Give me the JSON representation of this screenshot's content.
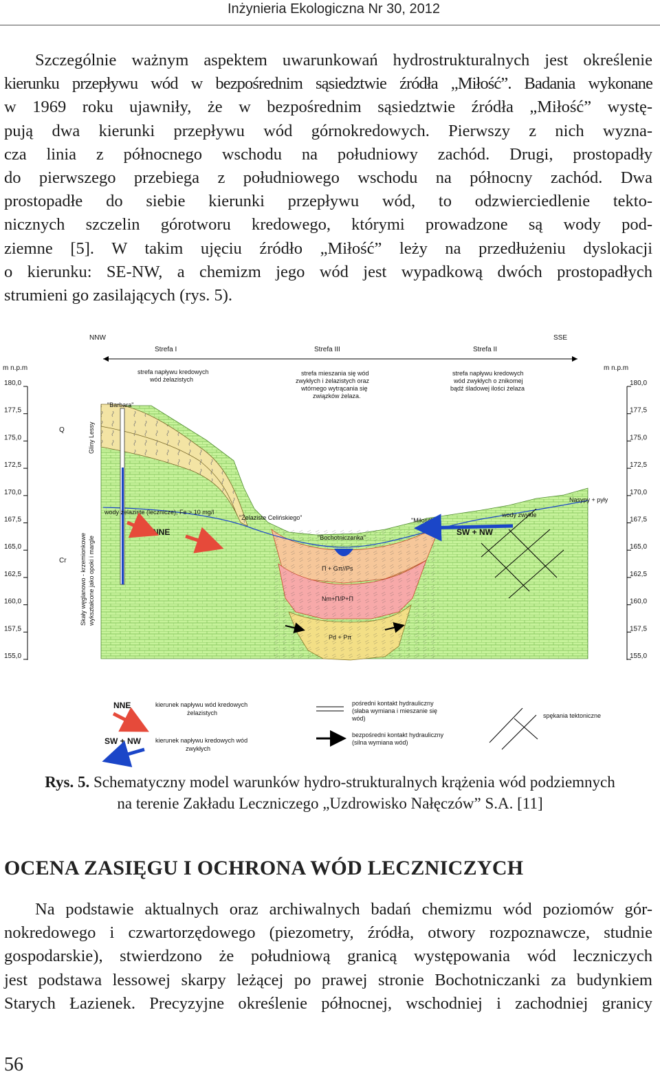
{
  "header": {
    "journal": "Inżynieria Ekologiczna Nr 30, 2012"
  },
  "para1": {
    "lines": [
      "Szczególnie ważnym aspektem uwarunkowań hydrostrukturalnych jest określenie",
      "kierunku przepływu wód w bezpośrednim sąsiedztwie źródła „Miłość”. Badania wykonane",
      "w 1969 roku ujawniły, że w bezpośrednim sąsiedztwie źródła „Miłość” wystę-",
      "pują dwa kierunki przepływu wód górnokredowych. Pierwszy z nich wyzna-",
      "cza linia z północnego wschodu na południowy zachód. Drugi, prostopadły",
      "do pierwszego przebiega z południowego wschodu na północny zachód. Dwa",
      "prostopadłe do siebie kierunki przepływu wód, to odzwierciedlenie tekto-",
      "nicznych szczelin górotworu kredowego, którymi prowadzone są wody pod-",
      "ziemne [5]. W takim ujęciu źródło „Miłość” leży na przedłużeniu dyslokacji",
      "o kierunku: SE-NW, a chemizm jego wód jest wypadkową dwóch prostopadłych",
      "strumieni go zasilających (rys. 5)."
    ]
  },
  "figure": {
    "dir_left": "NNW",
    "dir_right": "SSE",
    "zone_1": "Strefa I",
    "zone_3": "Strefa III",
    "zone_2": "Strefa II",
    "axis_unit_left": "m n.p.m",
    "axis_unit_right": "m n.p.m",
    "axis_ticks": [
      "180,0",
      "177,5",
      "175,0",
      "172,5",
      "170,0",
      "167,5",
      "165,0",
      "162,5",
      "160,0",
      "157,5",
      "155,0"
    ],
    "zone_1_desc": [
      "strefa napływu kredowych",
      "wód żelazistych"
    ],
    "zone_3_desc": [
      "strefa mieszania się wód",
      "zwykłych i żelazistych oraz",
      "wtórnego wytrącania się",
      "związków żelaza."
    ],
    "zone_2_desc": [
      "strefa napływu kredowych",
      "wód zwykłych o znikomej",
      "bądź śladowej ilości żelaza"
    ],
    "well_label": "\"Barbara\"",
    "strat_Q": "Q",
    "strat_Cr": "Cr",
    "loess_label": "Gliny   Lessy",
    "rock_desc": [
      "Skały węglanowo - krzemionkowe",
      "wykształcone jako opoki i margle"
    ],
    "iron_water_label": "wody żelaziste (lecznicze), Fe > 10 mg/l",
    "spring_zelaziste": "\"Żelaziste Celińskiego\"",
    "spring_milosc": "\"Miłość\"",
    "river_label": "\"Bochotniczanka\"",
    "ordinary_water_label": "wody zwykłe",
    "fill_label": "Nasypy + pyły",
    "flow_nne": "NNE",
    "flow_sw_nw": "SW + NW",
    "unit_1": "Π + Gπ//Ps",
    "unit_2": "Nm+Π/P+Π",
    "unit_3": "Pd + Pπ",
    "legend": {
      "nne_label": "NNE",
      "nne_desc": [
        "kierunek napływu wód kredowych",
        "żelazistych"
      ],
      "swnw_label": "SW + NW",
      "swnw_desc": [
        "kierunek napływu kredowych wód",
        "zwykłych"
      ],
      "indirect_desc": [
        "pośredni kontakt hydrauliczny",
        "(słaba wymiana i mieszanie się",
        "wód)"
      ],
      "direct_desc": [
        "bezpośredni kontakt hydrauliczny",
        "(silna wymiana wód)"
      ],
      "fracture_desc": "spękania tektoniczne"
    }
  },
  "caption": {
    "label": "Rys. 5.",
    "line1": " Schematyczny model warunków hydro-strukturalnych krążenia wód podziemnych",
    "line2": "na terenie Zakładu Leczniczego „Uzdrowisko Nałęczów” S.A. [11]"
  },
  "section": {
    "heading": "OCENA ZASIĘGU I OCHRONA WÓD LECZNICZYCH"
  },
  "para2": {
    "lines": [
      "Na podstawie aktualnych oraz archiwalnych badań chemizmu wód poziomów gór-",
      "nokredowego i czwartorzędowego (piezometry, źródła, otwory rozpoznawcze, studnie",
      "gospodarskie), stwierdzono że południową granicą występowania wód leczniczych",
      "jest podstawa lessowej skarpy leżącej po prawej stronie Bochotniczanki za budynkiem",
      "Starych Łazienek. Precyzyjne określenie północnej, wschodniej i zachodniej granicy"
    ]
  },
  "page_number": "56"
}
